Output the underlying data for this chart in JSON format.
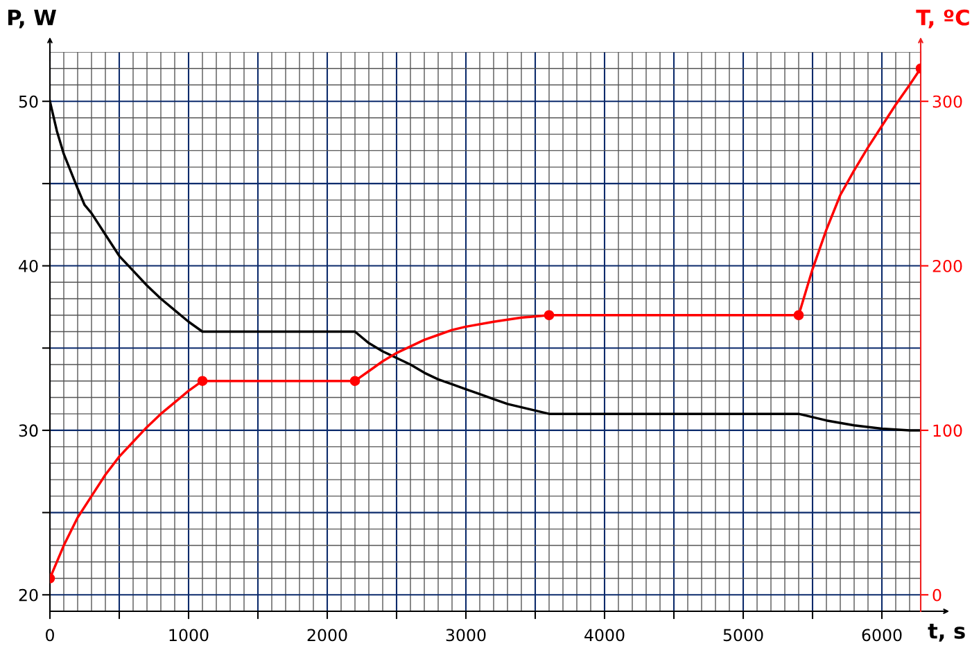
{
  "chart_data": {
    "type": "line",
    "xlabel": "t, s",
    "ylabel": "P, W",
    "y2label": "T, ºC",
    "xlim": [
      0,
      6280
    ],
    "ylim": [
      19,
      53
    ],
    "y2lim": [
      -10,
      330
    ],
    "xticks": [
      0,
      {
        "value": 500,
        "label": null
      },
      1000,
      {
        "value": 1500,
        "label": null
      },
      2000,
      {
        "value": 2500,
        "label": null
      },
      3000,
      {
        "value": 3500,
        "label": null
      },
      4000,
      {
        "value": 4500,
        "label": null
      },
      5000,
      {
        "value": 5500,
        "label": null
      },
      6000
    ],
    "yticks": [
      20,
      {
        "value": 25,
        "label": null
      },
      30,
      {
        "value": 35,
        "label": null
      },
      40,
      {
        "value": 45,
        "label": null
      },
      50
    ],
    "y2ticks": [
      0,
      100,
      200,
      300
    ],
    "grid": true,
    "line_style": "solid",
    "series": [
      {
        "color": "#000000",
        "marker": "none",
        "x": [
          0,
          50,
          100,
          200,
          250,
          300,
          400,
          500,
          600,
          700,
          800,
          900,
          1000,
          1100,
          2200,
          2300,
          2400,
          2500,
          2600,
          2700,
          2800,
          2900,
          3000,
          3100,
          3200,
          3300,
          3400,
          3500,
          3600,
          5400,
          5600,
          5800,
          6000,
          6200,
          6280
        ],
        "values": [
          50,
          48.2,
          46.8,
          44.7,
          43.7,
          43.2,
          41.9,
          40.6,
          39.7,
          38.8,
          38.0,
          37.3,
          36.6,
          36,
          36,
          35.3,
          34.8,
          34.4,
          34.0,
          33.5,
          33.1,
          32.8,
          32.5,
          32.2,
          31.9,
          31.6,
          31.4,
          31.2,
          31,
          31,
          30.6,
          30.3,
          30.1,
          30.0,
          30
        ]
      },
      {
        "color": "#ff0000",
        "axis": "y2",
        "marker": "none",
        "x": [
          0,
          100,
          200,
          300,
          400,
          500,
          600,
          700,
          800,
          900,
          1000,
          1100,
          2200,
          2300,
          2400,
          2500,
          2600,
          2700,
          2800,
          2900,
          3000,
          3200,
          3400,
          3600,
          5400,
          5500,
          5600,
          5700,
          5800,
          5900,
          6000,
          6100,
          6200,
          6280
        ],
        "values": [
          10,
          30,
          47,
          60,
          73,
          84,
          93,
          102,
          110,
          117,
          124,
          130,
          130,
          136,
          142,
          147,
          151,
          155,
          158,
          161,
          163,
          166,
          168.5,
          170,
          170,
          198,
          222,
          243,
          258,
          272,
          285,
          298,
          310,
          320
        ]
      },
      {
        "type": "scatter",
        "color": "#ff0000",
        "axis": "y2",
        "marker": "circle",
        "x": [
          0,
          1100,
          2200,
          3600,
          5400,
          6280
        ],
        "values": [
          10,
          130,
          130,
          170,
          170,
          320
        ]
      }
    ]
  }
}
